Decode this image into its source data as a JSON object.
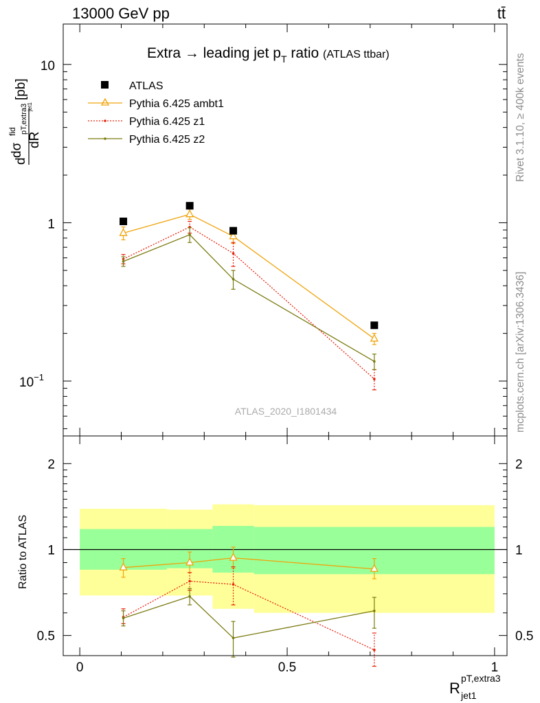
{
  "header": {
    "left": "13000 GeV pp",
    "right": "tt̄"
  },
  "side_labels": {
    "rivet": "Rivet 3.1.10, ≥ 400k events",
    "source": "mcplots.cern.ch [arXiv:1306.3436]"
  },
  "colors": {
    "atlas": "#000000",
    "ambt1": "#f0a30a",
    "z1": "#e8200c",
    "z2": "#7a7a10",
    "band_inner": "#99ff99",
    "band_outer": "#ffff99"
  },
  "chart_data": [
    {
      "type": "scatter",
      "title": "Extra → leading jet p",
      "title_sub": "T",
      "title_tail": " ratio",
      "title_note": "(ATLAS ttbar)",
      "watermark": "ATLAS_2020_I1801434",
      "ylabel": {
        "main": "dR",
        "num_d": "d",
        "num_sigma": "dσ",
        "sup": "fid",
        "sub": "pT,extra3",
        "subsub": "jet1",
        "unit": "[pb]"
      },
      "yscale": "log",
      "ylim": [
        0.045,
        18
      ],
      "yticks": [
        {
          "value": 0.1,
          "label_base": "10",
          "label_exp": "−1"
        },
        {
          "value": 1,
          "label_base": "1",
          "label_exp": ""
        },
        {
          "value": 10,
          "label_base": "10",
          "label_exp": ""
        }
      ],
      "xlim": [
        -0.04,
        1.03
      ],
      "legend_position": "top-left",
      "series": [
        {
          "name": "ATLAS",
          "key": "atlas",
          "marker": "square",
          "line": "none",
          "x": [
            0.105,
            0.265,
            0.37,
            0.71
          ],
          "y": [
            1.02,
            1.28,
            0.89,
            0.225
          ]
        },
        {
          "name": "Pythia 6.425 ambt1",
          "key": "ambt1",
          "marker": "triangle-open",
          "line": "solid",
          "x": [
            0.105,
            0.265,
            0.37,
            0.71
          ],
          "y": [
            0.86,
            1.13,
            0.82,
            0.185
          ],
          "err_low": [
            0.78,
            1.05,
            0.74,
            0.17
          ],
          "err_high": [
            0.94,
            1.22,
            0.9,
            0.2
          ]
        },
        {
          "name": "Pythia 6.425 z1",
          "key": "z1",
          "marker": "dot",
          "line": "dotted",
          "x": [
            0.105,
            0.265,
            0.37,
            0.71
          ],
          "y": [
            0.59,
            0.94,
            0.64,
            0.103
          ],
          "err_low": [
            0.55,
            0.86,
            0.53,
            0.088
          ],
          "err_high": [
            0.63,
            1.02,
            0.75,
            0.118
          ]
        },
        {
          "name": "Pythia 6.425 z2",
          "key": "z2",
          "marker": "dot",
          "line": "solid",
          "x": [
            0.105,
            0.265,
            0.37,
            0.71
          ],
          "y": [
            0.57,
            0.84,
            0.44,
            0.133
          ],
          "err_low": [
            0.53,
            0.75,
            0.38,
            0.118
          ],
          "err_high": [
            0.61,
            0.93,
            0.5,
            0.148
          ]
        }
      ]
    },
    {
      "type": "line",
      "ylabel": "Ratio to ATLAS",
      "xlabel": {
        "main": "R",
        "sup": "pT,extra3",
        "sub": "jet1"
      },
      "yscale": "log",
      "ylim": [
        0.425,
        2.5
      ],
      "yticks": [
        {
          "value": 0.5,
          "label": "0.5"
        },
        {
          "value": 1,
          "label": "1"
        },
        {
          "value": 2,
          "label": "2"
        }
      ],
      "xlim": [
        -0.04,
        1.03
      ],
      "xticks": [
        {
          "value": 0,
          "label": "0"
        },
        {
          "value": 0.5,
          "label": "0.5"
        },
        {
          "value": 1,
          "label": "1"
        }
      ],
      "reference": 1,
      "bands": [
        {
          "x0": 0.0,
          "x1": 0.21,
          "outer": [
            0.69,
            1.39
          ],
          "inner": [
            0.85,
            1.18
          ]
        },
        {
          "x0": 0.21,
          "x1": 0.32,
          "outer": [
            0.69,
            1.38
          ],
          "inner": [
            0.86,
            1.18
          ]
        },
        {
          "x0": 0.32,
          "x1": 0.42,
          "outer": [
            0.62,
            1.44
          ],
          "inner": [
            0.83,
            1.21
          ]
        },
        {
          "x0": 0.42,
          "x1": 1.0,
          "outer": [
            0.6,
            1.43
          ],
          "inner": [
            0.82,
            1.2
          ]
        }
      ],
      "series": [
        {
          "name": "Pythia 6.425 ambt1",
          "key": "ambt1",
          "marker": "triangle-open",
          "line": "solid",
          "x": [
            0.105,
            0.265,
            0.37,
            0.71
          ],
          "y": [
            0.865,
            0.9,
            0.935,
            0.855
          ],
          "err_low": [
            0.8,
            0.83,
            0.86,
            0.79
          ],
          "err_high": [
            0.93,
            0.98,
            1.02,
            0.93
          ]
        },
        {
          "name": "Pythia 6.425 z1",
          "key": "z1",
          "marker": "dot",
          "line": "dotted",
          "x": [
            0.105,
            0.265,
            0.37,
            0.71
          ],
          "y": [
            0.58,
            0.775,
            0.755,
            0.445
          ],
          "err_low": [
            0.55,
            0.72,
            0.64,
            0.39
          ],
          "err_high": [
            0.62,
            0.83,
            0.87,
            0.51
          ]
        },
        {
          "name": "Pythia 6.425 z2",
          "key": "z2",
          "marker": "dot",
          "line": "solid",
          "x": [
            0.105,
            0.265,
            0.37,
            0.71
          ],
          "y": [
            0.575,
            0.685,
            0.49,
            0.61
          ],
          "err_low": [
            0.54,
            0.64,
            0.42,
            0.53
          ],
          "err_high": [
            0.61,
            0.73,
            0.56,
            0.68
          ]
        }
      ]
    }
  ]
}
